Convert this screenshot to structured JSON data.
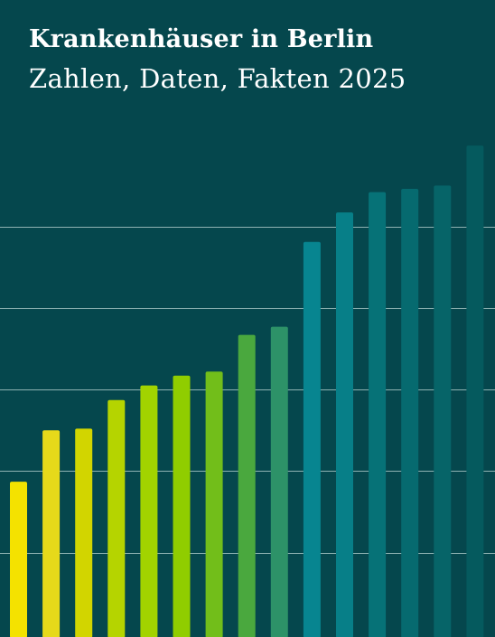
{
  "header": {
    "title": "Krankenhäuser in Berlin",
    "subtitle": "Zahlen, Daten, Fakten 2025"
  },
  "colors": {
    "background": "#05474d",
    "gridline": "#8fb3b3"
  },
  "chart_data": {
    "type": "bar",
    "title": "",
    "xlabel": "",
    "ylabel": "",
    "ylim": [
      0,
      6
    ],
    "grid": true,
    "gridlines": [
      1,
      2,
      3,
      4,
      5
    ],
    "values": [
      1.87,
      2.5,
      2.52,
      2.87,
      3.05,
      3.17,
      3.22,
      3.67,
      3.77,
      4.81,
      5.17,
      5.42,
      5.46,
      5.5,
      5.99
    ],
    "bar_colors": [
      "#f4e200",
      "#e6d91a",
      "#d2d500",
      "#b5d400",
      "#a2d300",
      "#90cd00",
      "#72be1a",
      "#4aa83e",
      "#2d9268",
      "#078590",
      "#077f88",
      "#067277",
      "#066a6f",
      "#066468",
      "#055a5e"
    ]
  }
}
